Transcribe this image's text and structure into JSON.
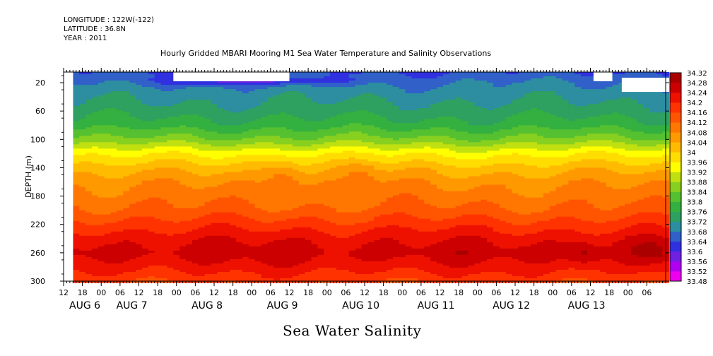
{
  "header": {
    "longitude": "LONGITUDE : 122W(-122)",
    "latitude": "LATITUDE : 36.8N",
    "year": "YEAR : 2011"
  },
  "title": "Hourly Gridded MBARI Mooring M1 Sea Water Temperature and Salinity Observations",
  "caption": "Sea Water Salinity",
  "chart_data": {
    "type": "heatmap",
    "title": "Hourly Gridded MBARI Mooring M1 Sea Water Temperature and Salinity Observations",
    "xlabel": "",
    "ylabel": "DEPTH (m)",
    "y_ticks": [
      20,
      60,
      100,
      140,
      180,
      220,
      260,
      300
    ],
    "ylim": [
      300,
      5
    ],
    "x_hour_ticks": [
      "12",
      "18",
      "00",
      "06",
      "12",
      "18",
      "00",
      "06",
      "12",
      "18",
      "00",
      "06",
      "12",
      "18",
      "00",
      "06",
      "12",
      "18",
      "00",
      "06",
      "12",
      "18",
      "00",
      "06",
      "12",
      "18",
      "00",
      "06",
      "12",
      "18",
      "00",
      "06"
    ],
    "x_day_labels": [
      "AUG 6",
      "AUG 7",
      "AUG 8",
      "AUG 9",
      "AUG 10",
      "AUG 11",
      "AUG 12",
      "AUG 13"
    ],
    "x_hours": [
      12,
      204
    ],
    "data_start_hour": 15,
    "colorbar": {
      "labels": [
        "34.32",
        "34.28",
        "34.24",
        "34.2",
        "34.16",
        "34.12",
        "34.08",
        "34.04",
        "34",
        "33.96",
        "33.92",
        "33.88",
        "33.84",
        "33.8",
        "33.76",
        "33.72",
        "33.68",
        "33.64",
        "33.6",
        "33.56",
        "33.52",
        "33.48"
      ],
      "min": 33.48,
      "max": 34.32,
      "step": 0.04
    },
    "profile": [
      {
        "depth": 5,
        "salinity": 33.64
      },
      {
        "depth": 20,
        "salinity": 33.68
      },
      {
        "depth": 40,
        "salinity": 33.71
      },
      {
        "depth": 60,
        "salinity": 33.74
      },
      {
        "depth": 80,
        "salinity": 33.78
      },
      {
        "depth": 100,
        "salinity": 33.85
      },
      {
        "depth": 120,
        "salinity": 33.95
      },
      {
        "depth": 140,
        "salinity": 34.02
      },
      {
        "depth": 160,
        "salinity": 34.07
      },
      {
        "depth": 180,
        "salinity": 34.1
      },
      {
        "depth": 200,
        "salinity": 34.13
      },
      {
        "depth": 220,
        "salinity": 34.18
      },
      {
        "depth": 240,
        "salinity": 34.23
      },
      {
        "depth": 260,
        "salinity": 34.26
      },
      {
        "depth": 280,
        "salinity": 34.22
      },
      {
        "depth": 300,
        "salinity": 34.17
      }
    ],
    "features": [
      {
        "hour": 82,
        "depth": 152,
        "delta": 0.06,
        "hour_spread": 6,
        "depth_spread": 25
      },
      {
        "hour": 107,
        "depth": 150,
        "delta": 0.05,
        "hour_spread": 6,
        "depth_spread": 22
      },
      {
        "hour": 178,
        "depth": 262,
        "delta": 0.05,
        "hour_spread": 5,
        "depth_spread": 18
      },
      {
        "hour": 200,
        "depth": 258,
        "delta": 0.04,
        "hour_spread": 6,
        "depth_spread": 20
      },
      {
        "hour": 72,
        "depth": 18,
        "delta": -0.09,
        "hour_spread": 30,
        "depth_spread": 6
      }
    ],
    "missing_regions": [
      {
        "h0": 12,
        "h1": 15,
        "d0": 5,
        "d1": 300
      },
      {
        "h0": 47,
        "h1": 84,
        "d0": 5,
        "d1": 18
      },
      {
        "h0": 181,
        "h1": 187,
        "d0": 5,
        "d1": 18
      },
      {
        "h0": 190,
        "h1": 206,
        "d0": 13,
        "d1": 33
      }
    ]
  },
  "colors": {
    "scale": [
      "#ee00ee",
      "#b000f0",
      "#7020e0",
      "#3030e0",
      "#3060c8",
      "#2d8ea0",
      "#2ea060",
      "#33b040",
      "#55c030",
      "#88d020",
      "#c0e010",
      "#ffff00",
      "#ffdd00",
      "#ffbb00",
      "#ff9900",
      "#ff7700",
      "#ff5500",
      "#ff3300",
      "#ee1100",
      "#cc0000",
      "#aa0000"
    ]
  }
}
